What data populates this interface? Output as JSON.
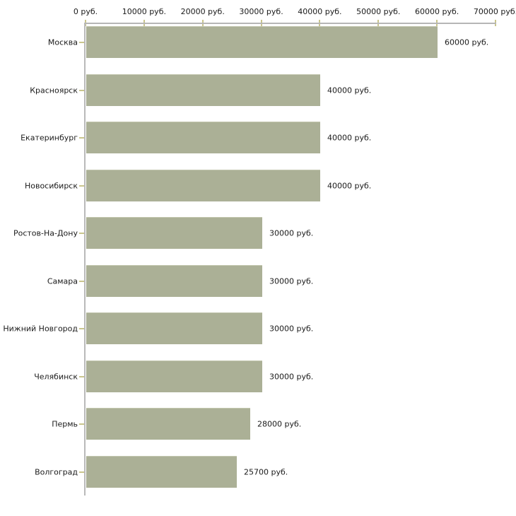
{
  "chart_data": {
    "type": "bar",
    "orientation": "horizontal",
    "categories": [
      "Москва",
      "Красноярск",
      "Екатеринбург",
      "Новосибирск",
      "Ростов-На-Дону",
      "Самара",
      "Нижний Новгород",
      "Челябинск",
      "Пермь",
      "Волгоград"
    ],
    "values": [
      60000,
      40000,
      40000,
      40000,
      30000,
      30000,
      30000,
      30000,
      28000,
      25700
    ],
    "value_labels": [
      "60000 руб.",
      "40000 руб.",
      "40000 руб.",
      "40000 руб.",
      "30000 руб.",
      "30000 руб.",
      "30000 руб.",
      "30000 руб.",
      "28000 руб.",
      "25700 руб."
    ],
    "unit": "руб.",
    "x_ticks": [
      0,
      10000,
      20000,
      30000,
      40000,
      50000,
      60000,
      70000
    ],
    "x_tick_labels": [
      "0 руб.",
      "10000 руб.",
      "20000 руб.",
      "30000 руб.",
      "40000 руб.",
      "50000 руб.",
      "60000 руб.",
      "70000 руб."
    ],
    "xlim": [
      0,
      70000
    ],
    "title": "",
    "xlabel": "",
    "ylabel": "",
    "grid": false,
    "legend": false,
    "colors": {
      "bar": "#abb096",
      "bar_top_edge": "#c3c7af",
      "axis_line": "#b6b6b6",
      "tick_mark": "#c9c58d",
      "text": "#1a1a1a",
      "background": "#ffffff"
    }
  }
}
